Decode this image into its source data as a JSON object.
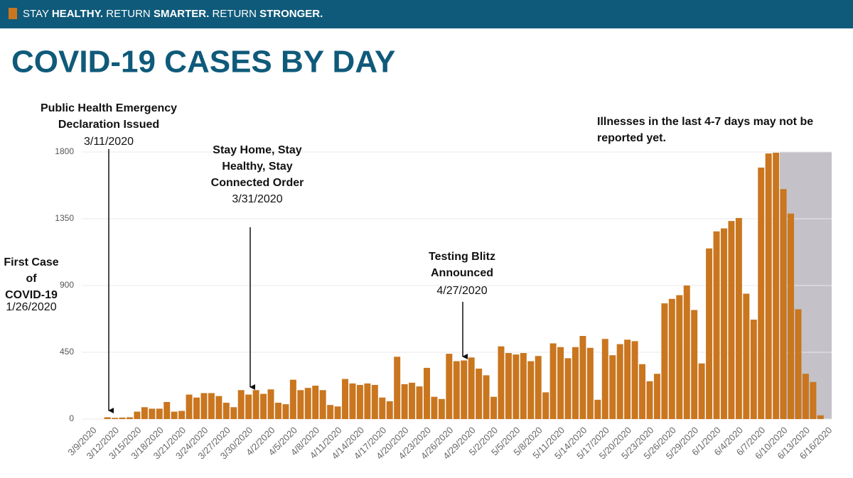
{
  "header": [
    "STAY ",
    "HEALTHY.",
    " RETURN ",
    "SMARTER.",
    " RETURN ",
    "STRONGER."
  ],
  "chart_data": {
    "type": "bar",
    "title": "COVID-19 CASES BY DAY",
    "color": "#c9761f",
    "grid": true,
    "ylim": [
      0,
      1800
    ],
    "yticks": [
      0,
      450,
      900,
      1350,
      1800
    ],
    "categories": [
      "3/9/2020",
      null,
      null,
      "3/12/2020",
      null,
      null,
      "3/15/2020",
      null,
      null,
      "3/18/2020",
      null,
      null,
      "3/21/2020",
      null,
      null,
      "3/24/2020",
      null,
      null,
      "3/27/2020",
      null,
      null,
      "3/30/2020",
      null,
      null,
      "4/2/2020",
      null,
      null,
      "4/5/2020",
      null,
      null,
      "4/8/2020",
      null,
      null,
      "4/11/2020",
      null,
      null,
      "4/14/2020",
      null,
      null,
      "4/17/2020",
      null,
      null,
      "4/20/2020",
      null,
      null,
      "4/23/2020",
      null,
      null,
      "4/26/2020",
      null,
      null,
      "4/29/2020",
      null,
      null,
      "5/2/2020",
      null,
      null,
      "5/5/2020",
      null,
      null,
      "5/8/2020",
      null,
      null,
      "5/11/2020",
      null,
      null,
      "5/14/2020",
      null,
      null,
      "5/17/2020",
      null,
      null,
      "5/20/2020",
      null,
      null,
      "5/23/2020",
      null,
      null,
      "5/26/2020",
      null,
      null,
      "5/29/2020",
      null,
      null,
      "6/1/2020",
      null,
      null,
      "6/4/2020",
      null,
      null,
      "6/7/2020",
      null,
      null,
      "6/10/2020",
      null,
      null,
      "6/13/2020",
      null,
      null,
      "6/16/2020"
    ],
    "values": [
      0,
      0,
      12,
      8,
      10,
      12,
      50,
      80,
      70,
      70,
      115,
      50,
      55,
      165,
      145,
      175,
      175,
      155,
      110,
      80,
      195,
      165,
      195,
      170,
      200,
      110,
      100,
      265,
      195,
      210,
      225,
      195,
      95,
      85,
      270,
      240,
      230,
      240,
      230,
      145,
      120,
      420,
      235,
      245,
      220,
      345,
      150,
      135,
      440,
      390,
      395,
      415,
      340,
      295,
      150,
      490,
      445,
      435,
      445,
      390,
      425,
      180,
      510,
      485,
      410,
      485,
      560,
      480,
      130,
      540,
      430,
      505,
      535,
      525,
      370,
      255,
      305,
      780,
      810,
      835,
      900,
      735,
      375,
      1150,
      1265,
      1285,
      1335,
      1355,
      845,
      670,
      1695,
      1790,
      1795,
      1550,
      1385,
      740,
      305,
      250,
      25,
      0
    ],
    "annotations": [
      {
        "lines": [
          "Public Health Emergency",
          "Declaration Issued"
        ],
        "date": "3/11/2020"
      },
      {
        "lines": [
          "Stay Home, Stay",
          "Healthy,  Stay",
          "Connected Order"
        ],
        "date": "3/31/2020"
      },
      {
        "lines": [
          "Testing Blitz",
          "Announced"
        ],
        "date": "4/27/2020"
      },
      {
        "lines": [
          "First Case",
          "of",
          "COVID-19"
        ],
        "date": "1/26/2020"
      },
      {
        "lines": [
          "Illnesses in the last 4-7 days may not be",
          "reported yet."
        ]
      }
    ]
  }
}
